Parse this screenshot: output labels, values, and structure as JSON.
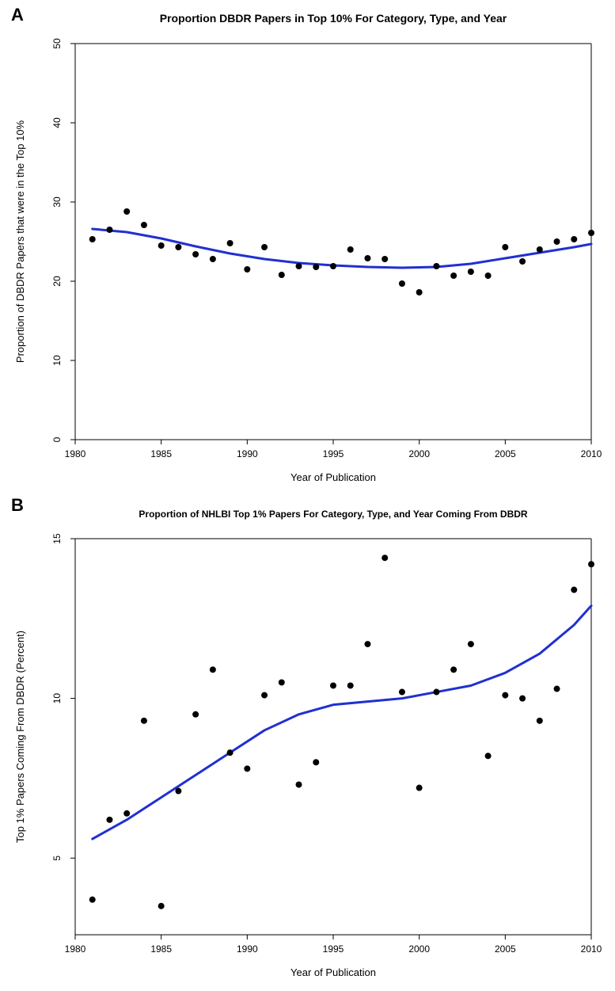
{
  "panelA": {
    "label": "A",
    "label_fontsize": 22,
    "type": "scatter",
    "title": "Proportion DBDR Papers in Top 10% For Category, Type, and Year",
    "title_fontsize": 14,
    "xlabel": "Year of Publication",
    "ylabel": "Proportion of DBDR Papers that were in the Top 10%",
    "label_fontsize_axis": 13,
    "tick_fontsize": 12,
    "xlim": [
      1980,
      2010
    ],
    "ylim": [
      0,
      50
    ],
    "xticks": [
      1980,
      1985,
      1990,
      1995,
      2000,
      2005,
      2010
    ],
    "yticks": [
      0,
      10,
      20,
      30,
      40,
      50
    ],
    "points": [
      {
        "x": 1981,
        "y": 25.3
      },
      {
        "x": 1982,
        "y": 26.5
      },
      {
        "x": 1983,
        "y": 28.8
      },
      {
        "x": 1984,
        "y": 27.1
      },
      {
        "x": 1985,
        "y": 24.5
      },
      {
        "x": 1986,
        "y": 24.3
      },
      {
        "x": 1987,
        "y": 23.4
      },
      {
        "x": 1988,
        "y": 22.8
      },
      {
        "x": 1989,
        "y": 24.8
      },
      {
        "x": 1990,
        "y": 21.5
      },
      {
        "x": 1991,
        "y": 24.3
      },
      {
        "x": 1992,
        "y": 20.8
      },
      {
        "x": 1993,
        "y": 21.9
      },
      {
        "x": 1994,
        "y": 21.8
      },
      {
        "x": 1995,
        "y": 21.9
      },
      {
        "x": 1996,
        "y": 24.0
      },
      {
        "x": 1997,
        "y": 22.9
      },
      {
        "x": 1998,
        "y": 22.8
      },
      {
        "x": 1999,
        "y": 19.7
      },
      {
        "x": 2000,
        "y": 18.6
      },
      {
        "x": 2001,
        "y": 21.9
      },
      {
        "x": 2002,
        "y": 20.7
      },
      {
        "x": 2003,
        "y": 21.2
      },
      {
        "x": 2004,
        "y": 20.7
      },
      {
        "x": 2005,
        "y": 24.3
      },
      {
        "x": 2006,
        "y": 22.5
      },
      {
        "x": 2007,
        "y": 24.0
      },
      {
        "x": 2008,
        "y": 25.0
      },
      {
        "x": 2009,
        "y": 25.3
      },
      {
        "x": 2010,
        "y": 26.1
      }
    ],
    "smooth_line": [
      {
        "x": 1981,
        "y": 26.6
      },
      {
        "x": 1983,
        "y": 26.2
      },
      {
        "x": 1985,
        "y": 25.4
      },
      {
        "x": 1987,
        "y": 24.4
      },
      {
        "x": 1989,
        "y": 23.5
      },
      {
        "x": 1991,
        "y": 22.8
      },
      {
        "x": 1993,
        "y": 22.3
      },
      {
        "x": 1995,
        "y": 22.0
      },
      {
        "x": 1997,
        "y": 21.8
      },
      {
        "x": 1999,
        "y": 21.7
      },
      {
        "x": 2001,
        "y": 21.8
      },
      {
        "x": 2003,
        "y": 22.2
      },
      {
        "x": 2005,
        "y": 22.9
      },
      {
        "x": 2007,
        "y": 23.6
      },
      {
        "x": 2009,
        "y": 24.3
      },
      {
        "x": 2010,
        "y": 24.7
      }
    ],
    "point_color": "#000000",
    "point_radius": 4,
    "line_color": "#2030d0",
    "line_width": 3,
    "background_color": "#ffffff",
    "axis_color": "#000000"
  },
  "panelB": {
    "label": "B",
    "label_fontsize": 22,
    "type": "scatter",
    "title": "Proportion of NHLBI Top 1% Papers For Category, Type, and Year Coming From DBDR",
    "title_fontsize": 12,
    "xlabel": "Year of Publication",
    "ylabel": "Top 1% Papers Coming From DBDR (Percent)",
    "label_fontsize_axis": 13,
    "tick_fontsize": 12,
    "xlim": [
      1980,
      2010
    ],
    "ylim": [
      2.6,
      15
    ],
    "xticks": [
      1980,
      1985,
      1990,
      1995,
      2000,
      2005,
      2010
    ],
    "yticks": [
      5,
      10,
      15
    ],
    "points": [
      {
        "x": 1981,
        "y": 3.7
      },
      {
        "x": 1982,
        "y": 6.2
      },
      {
        "x": 1983,
        "y": 6.4
      },
      {
        "x": 1984,
        "y": 9.3
      },
      {
        "x": 1985,
        "y": 3.5
      },
      {
        "x": 1986,
        "y": 7.1
      },
      {
        "x": 1987,
        "y": 9.5
      },
      {
        "x": 1988,
        "y": 10.9
      },
      {
        "x": 1989,
        "y": 8.3
      },
      {
        "x": 1990,
        "y": 7.8
      },
      {
        "x": 1991,
        "y": 10.1
      },
      {
        "x": 1992,
        "y": 10.5
      },
      {
        "x": 1993,
        "y": 7.3
      },
      {
        "x": 1994,
        "y": 8.0
      },
      {
        "x": 1995,
        "y": 10.4
      },
      {
        "x": 1996,
        "y": 10.4
      },
      {
        "x": 1997,
        "y": 11.7
      },
      {
        "x": 1998,
        "y": 14.4
      },
      {
        "x": 1999,
        "y": 10.2
      },
      {
        "x": 2000,
        "y": 7.2
      },
      {
        "x": 2001,
        "y": 10.2
      },
      {
        "x": 2002,
        "y": 10.9
      },
      {
        "x": 2003,
        "y": 11.7
      },
      {
        "x": 2004,
        "y": 8.2
      },
      {
        "x": 2005,
        "y": 10.1
      },
      {
        "x": 2006,
        "y": 10.0
      },
      {
        "x": 2007,
        "y": 9.3
      },
      {
        "x": 2008,
        "y": 10.3
      },
      {
        "x": 2009,
        "y": 13.4
      },
      {
        "x": 2010,
        "y": 14.2
      }
    ],
    "smooth_line": [
      {
        "x": 1981,
        "y": 5.6
      },
      {
        "x": 1983,
        "y": 6.2
      },
      {
        "x": 1985,
        "y": 6.9
      },
      {
        "x": 1987,
        "y": 7.6
      },
      {
        "x": 1989,
        "y": 8.3
      },
      {
        "x": 1991,
        "y": 9.0
      },
      {
        "x": 1993,
        "y": 9.5
      },
      {
        "x": 1995,
        "y": 9.8
      },
      {
        "x": 1997,
        "y": 9.9
      },
      {
        "x": 1999,
        "y": 10.0
      },
      {
        "x": 2001,
        "y": 10.2
      },
      {
        "x": 2003,
        "y": 10.4
      },
      {
        "x": 2005,
        "y": 10.8
      },
      {
        "x": 2007,
        "y": 11.4
      },
      {
        "x": 2009,
        "y": 12.3
      },
      {
        "x": 2010,
        "y": 12.9
      }
    ],
    "point_color": "#000000",
    "point_radius": 4,
    "line_color": "#2030d0",
    "line_width": 3,
    "background_color": "#ffffff",
    "axis_color": "#000000"
  }
}
